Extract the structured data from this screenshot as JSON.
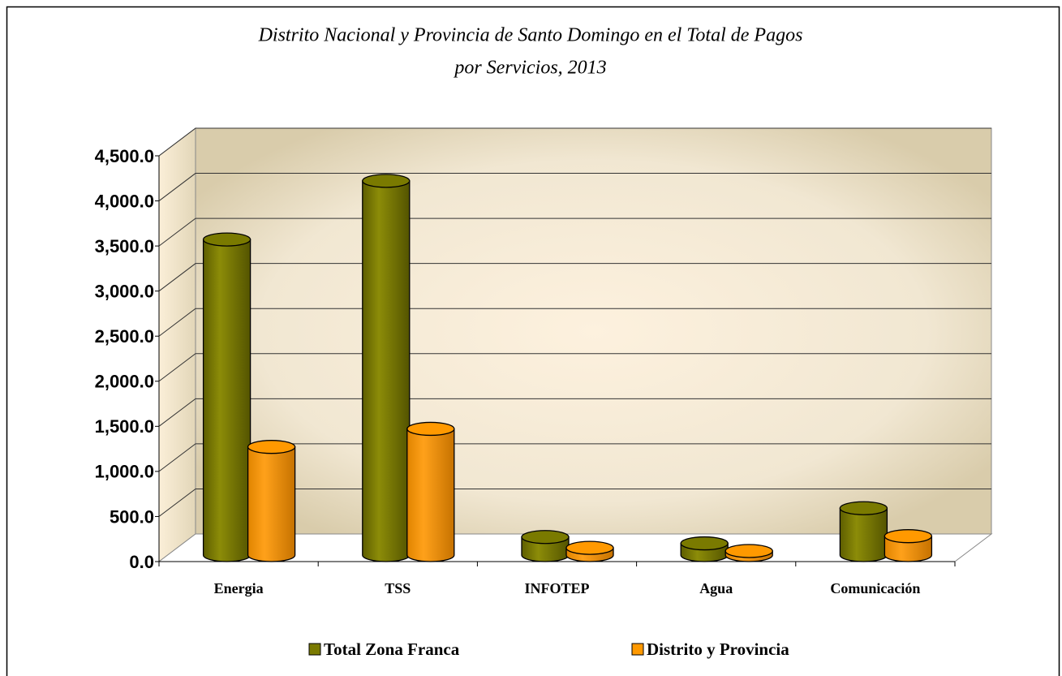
{
  "chart_data": {
    "type": "bar3d",
    "title": [
      "Distrito Nacional y Provincia de Santo Domingo en el Total de Pagos",
      "por Servicios, 2013"
    ],
    "categories": [
      "Energia",
      "TSS",
      "INFOTEP",
      "Agua",
      "Comunicación"
    ],
    "series": [
      {
        "name": "Total Zona Franca",
        "color": "#7a7a00",
        "values": [
          3500,
          4150,
          200,
          130,
          520
        ]
      },
      {
        "name": "Distrito y Provincia",
        "color": "#ff9900",
        "values": [
          1200,
          1400,
          80,
          45,
          210
        ]
      }
    ],
    "ylim": [
      0,
      4500
    ],
    "yticks": [
      {
        "value": 0,
        "label": "0.0"
      },
      {
        "value": 500,
        "label": "500.0"
      },
      {
        "value": 1000,
        "label": "1,000.0"
      },
      {
        "value": 1500,
        "label": "1,500.0"
      },
      {
        "value": 2000,
        "label": "2,000.0"
      },
      {
        "value": 2500,
        "label": "2,500.0"
      },
      {
        "value": 3000,
        "label": "3,000.0"
      },
      {
        "value": 3500,
        "label": "3,500.0"
      },
      {
        "value": 4000,
        "label": "4,000.0"
      },
      {
        "value": 4500,
        "label": "4,500.0"
      }
    ],
    "grid": true
  }
}
